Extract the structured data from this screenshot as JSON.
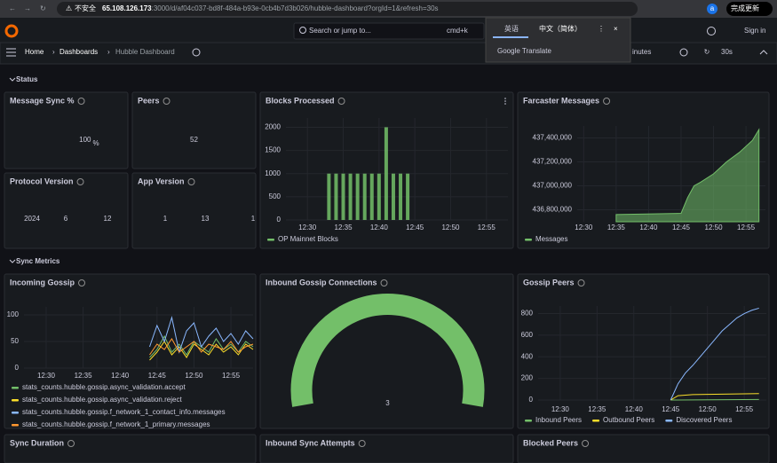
{
  "browser": {
    "url_warning": "不安全",
    "url_host": "65.108.126.173",
    "url_path": ":3000/d/af04c037-bd8f-484a-b93e-0cb4b7d3b026/hubble-dashboard?orgId=1&refresh=30s",
    "profile": "a",
    "update_button": "完成更新"
  },
  "translate_popup": {
    "tabs": [
      "英语",
      "中文（简体）"
    ],
    "brand": "Google Translate"
  },
  "topbar": {
    "search": "Search or jump to...",
    "shortcut": "cmd+k",
    "sign_in": "Sign in"
  },
  "breadcrumb": [
    "Home",
    "Dashboards",
    "Hubble Dashboard"
  ],
  "toolbar": {
    "time_range": "inutes",
    "refresh": "30s"
  },
  "dashboard": {
    "rows": [
      "Status",
      "Sync Metrics"
    ],
    "panels": [
      {
        "title": "Message Sync %",
        "type": "stat",
        "value": 100,
        "unit": "%",
        "color": "#73bf69"
      },
      {
        "title": "Peers",
        "type": "stat",
        "value": 52,
        "color": "#73bf69"
      },
      {
        "title": "Protocol Version",
        "type": "stat_multi",
        "values": [
          2024,
          6,
          12
        ],
        "color": "#73bf69"
      },
      {
        "title": "App Version",
        "type": "stat_multi",
        "values": [
          1,
          13,
          1
        ],
        "color": "#73bf69"
      },
      {
        "title": "Blocks Processed",
        "type": "bar",
        "xlim": [
          "12:27",
          "12:58"
        ],
        "xticks": [
          "12:30",
          "12:35",
          "12:40",
          "12:45",
          "12:50",
          "12:55"
        ],
        "ylim": [
          0,
          2200
        ],
        "yticks": [
          0,
          500,
          1000,
          1500,
          2000
        ],
        "series": [
          {
            "name": "OP Mainnet Blocks",
            "color": "#73bf69",
            "x": [
              "12:33",
              "12:34",
              "12:35",
              "12:36",
              "12:37",
              "12:38",
              "12:39",
              "12:40",
              "12:41",
              "12:42",
              "12:43",
              "12:44"
            ],
            "values": [
              1000,
              1000,
              1000,
              1000,
              1000,
              1000,
              1000,
              1000,
              2000,
              1000,
              1000,
              1000
            ]
          }
        ]
      },
      {
        "title": "Farcaster Messages",
        "type": "area",
        "xlim": [
          "12:29",
          "12:58"
        ],
        "xticks": [
          "12:30",
          "12:35",
          "12:40",
          "12:45",
          "12:50",
          "12:55"
        ],
        "ylim": [
          436700000,
          437500000
        ],
        "yticks": [
          {
            "value": 436800000,
            "label": "436,800,000"
          },
          {
            "value": 437000000,
            "label": "437,000,000"
          },
          {
            "value": 437200000,
            "label": "437,200,000"
          },
          {
            "value": 437400000,
            "label": "437,400,000"
          }
        ],
        "series": [
          {
            "name": "Messages",
            "color": "#73bf69",
            "x": [
              "12:35",
              "12:45",
              "12:46",
              "12:47",
              "12:48",
              "12:50",
              "12:52",
              "12:54",
              "12:56",
              "12:57"
            ],
            "values": [
              436760000,
              436770000,
              436900000,
              437000000,
              437030000,
              437100000,
              437200000,
              437280000,
              437380000,
              437470000
            ]
          }
        ]
      },
      {
        "title": "Incoming Gossip",
        "type": "line",
        "xlim": [
          "12:27",
          "12:58"
        ],
        "xticks": [
          "12:30",
          "12:35",
          "12:40",
          "12:45",
          "12:50",
          "12:55"
        ],
        "ylim": [
          0,
          115
        ],
        "yticks": [
          0,
          50,
          100
        ],
        "series": [
          {
            "name": "stats_counts.hubble.gossip.async_validation.accept",
            "color": "#73bf69",
            "x": [
              "12:44",
              "12:45",
              "12:46",
              "12:47",
              "12:48",
              "12:49",
              "12:50",
              "12:51",
              "12:52",
              "12:53",
              "12:54",
              "12:55",
              "12:56",
              "12:57",
              "12:58"
            ],
            "values": [
              20,
              35,
              60,
              30,
              45,
              25,
              50,
              40,
              30,
              55,
              35,
              45,
              30,
              50,
              40
            ]
          },
          {
            "name": "stats_counts.hubble.gossip.async_validation.reject",
            "color": "#fade2a",
            "x": [
              "12:44",
              "12:45",
              "12:46",
              "12:47",
              "12:48",
              "12:49",
              "12:50",
              "12:51",
              "12:52",
              "12:53",
              "12:54",
              "12:55",
              "12:56",
              "12:57",
              "12:58"
            ],
            "values": [
              15,
              30,
              50,
              25,
              40,
              20,
              45,
              35,
              25,
              45,
              30,
              40,
              25,
              45,
              35
            ]
          },
          {
            "name": "stats_counts.hubble.gossip.f_network_1_contact_info.messages",
            "color": "#8ab8ff",
            "x": [
              "12:44",
              "12:45",
              "12:46",
              "12:47",
              "12:48",
              "12:49",
              "12:50",
              "12:51",
              "12:52",
              "12:53",
              "12:54",
              "12:55",
              "12:56",
              "12:57",
              "12:58"
            ],
            "values": [
              40,
              80,
              50,
              95,
              30,
              70,
              85,
              40,
              60,
              75,
              50,
              65,
              45,
              70,
              55
            ]
          },
          {
            "name": "stats_counts.hubble.gossip.f_network_1_primary.messages",
            "color": "#ff9830",
            "x": [
              "12:44",
              "12:45",
              "12:46",
              "12:47",
              "12:48",
              "12:49",
              "12:50",
              "12:51",
              "12:52",
              "12:53",
              "12:54",
              "12:55",
              "12:56",
              "12:57",
              "12:58"
            ],
            "values": [
              25,
              45,
              35,
              55,
              30,
              40,
              50,
              30,
              45,
              40,
              35,
              50,
              30,
              40,
              45
            ]
          }
        ]
      },
      {
        "title": "Inbound Gossip Connections",
        "type": "gauge",
        "value": 3,
        "color": "#73bf69"
      },
      {
        "title": "Gossip Peers",
        "type": "line",
        "xlim": [
          "12:27",
          "12:58"
        ],
        "xticks": [
          "12:30",
          "12:35",
          "12:40",
          "12:45",
          "12:50",
          "12:55"
        ],
        "ylim": [
          0,
          870
        ],
        "yticks": [
          0,
          200,
          400,
          600,
          800
        ],
        "series": [
          {
            "name": "Inbound Peers",
            "color": "#73bf69",
            "x": [
              "12:45",
              "12:57"
            ],
            "values": [
              0,
              5
            ]
          },
          {
            "name": "Outbound Peers",
            "color": "#fade2a",
            "x": [
              "12:45",
              "12:46",
              "12:48",
              "12:57"
            ],
            "values": [
              0,
              40,
              50,
              60
            ]
          },
          {
            "name": "Discovered Peers",
            "color": "#8ab8ff",
            "x": [
              "12:45",
              "12:46",
              "12:47",
              "12:48",
              "12:49",
              "12:50",
              "12:51",
              "12:52",
              "12:53",
              "12:54",
              "12:55",
              "12:56",
              "12:57"
            ],
            "values": [
              0,
              150,
              250,
              320,
              400,
              480,
              560,
              640,
              700,
              760,
              800,
              830,
              850
            ]
          }
        ]
      },
      {
        "title": "Sync Duration",
        "type": "empty"
      },
      {
        "title": "Inbound Sync Attempts",
        "type": "empty"
      },
      {
        "title": "Blocked Peers",
        "type": "empty"
      }
    ]
  }
}
